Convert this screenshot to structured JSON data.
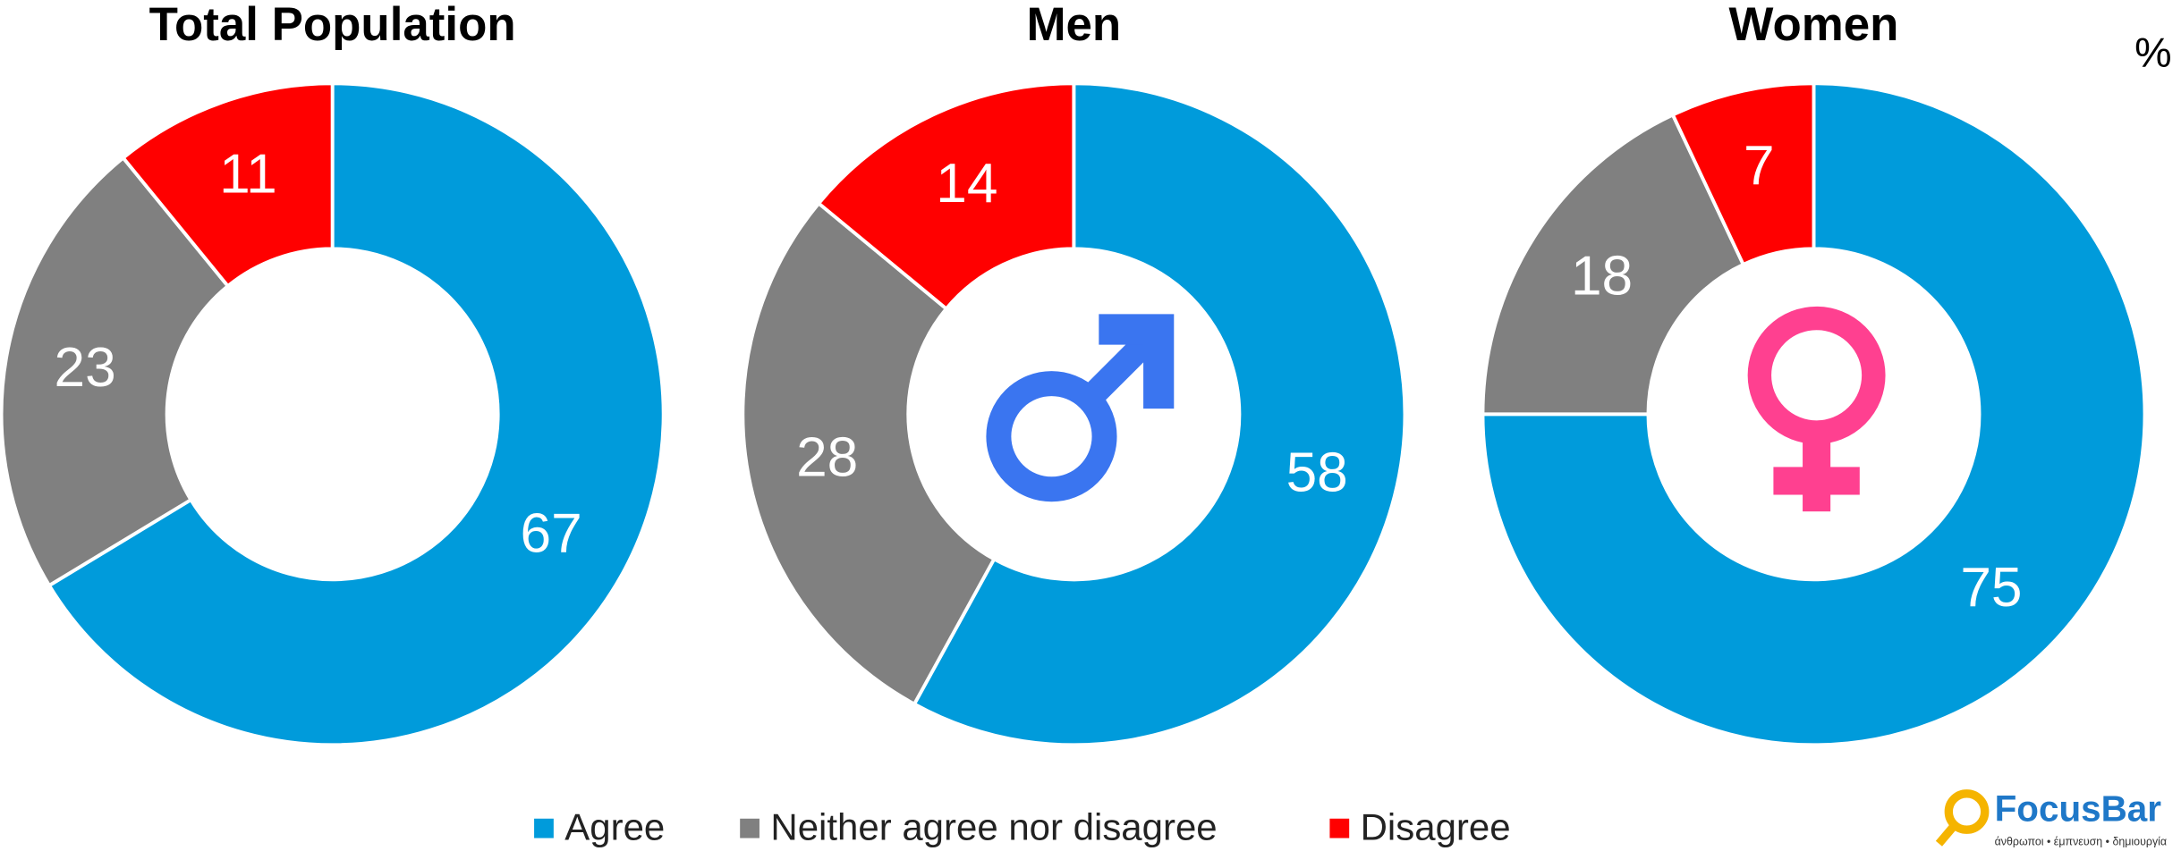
{
  "chart_data": [
    {
      "type": "donut",
      "title": "Total Population",
      "values": [
        67,
        23,
        11
      ]
    },
    {
      "type": "donut",
      "title": "Men",
      "values": [
        58,
        28,
        14
      ]
    },
    {
      "type": "donut",
      "title": "Women",
      "values": [
        75,
        18,
        7
      ]
    }
  ],
  "legend": {
    "labels": [
      "Agree",
      "Neither agree nor disagree",
      "Disagree"
    ],
    "colors": [
      "#009bdb",
      "#808080",
      "#ff0000"
    ]
  },
  "unit_label": "%",
  "logo": {
    "name": "FocusBar",
    "tagline": "άνθρωποι • έμπνευση • δημιουργία"
  }
}
